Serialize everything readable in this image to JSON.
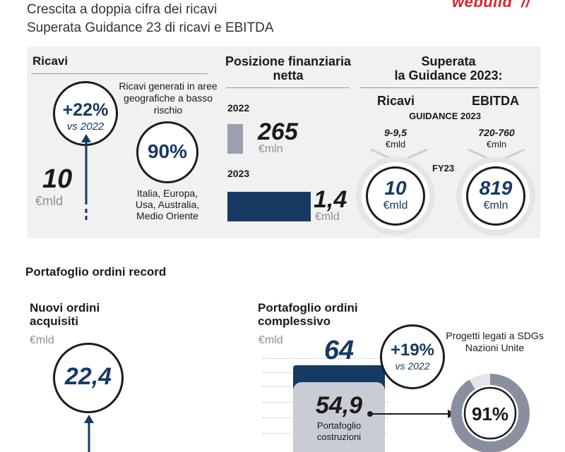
{
  "header": {
    "line1": "Crescita a doppia cifra dei ricavi",
    "line2": "Superata Guidance 23 di ricavi e EBITDA",
    "logo_text": "webuild",
    "logo_mark": "//"
  },
  "ricavi": {
    "title": "Ricavi",
    "growth": "+22%",
    "growth_sub": "vs 2022",
    "value": "10",
    "unit": "€mld",
    "geo_text": "Ricavi generati in aree geografiche a basso rischio",
    "geo_pct": "90%",
    "geo_regions": "Italia, Europa, Usa, Australia, Medio Oriente"
  },
  "posizione": {
    "title": "Posizione finanziaria netta",
    "year1": "2022",
    "value1": "265",
    "unit1": "€mln",
    "year2": "2023",
    "value2": "1,4",
    "unit2": "€mld"
  },
  "guidance": {
    "title_line1": "Superata",
    "title_line2": "la Guidance 2023:",
    "col1": "Ricavi",
    "col2": "EBITDA",
    "guidance_label": "GUIDANCE 2023",
    "range1": "9-9,5",
    "range1_unit": "€mld",
    "range2": "720-760",
    "range2_unit": "€mln",
    "fy_label": "FY23",
    "actual1": "10",
    "actual1_unit": "€mld",
    "actual2": "819",
    "actual2_unit": "€mln"
  },
  "portafoglio": {
    "title": "Portafoglio ordini record",
    "nuovi_title": "Nuovi ordini acquisiti",
    "nuovi_unit": "€mld",
    "nuovi_value": "22,4",
    "compl_title": "Portafoglio ordini complessivo",
    "compl_unit": "€mld",
    "compl_total": "64",
    "growth": "+19%",
    "growth_sub": "vs 2022",
    "costr_value": "54,9",
    "costr_label": "Portafoglio costruzioni",
    "sdg_text": "Progetti legati a SDGs Nazioni Unite",
    "sdg_pct": "91%",
    "sdg_fraction": 0.91
  },
  "colors": {
    "navy": "#163a63",
    "gray_bar": "#9aa0ad",
    "brand_red": "#d8262f"
  }
}
